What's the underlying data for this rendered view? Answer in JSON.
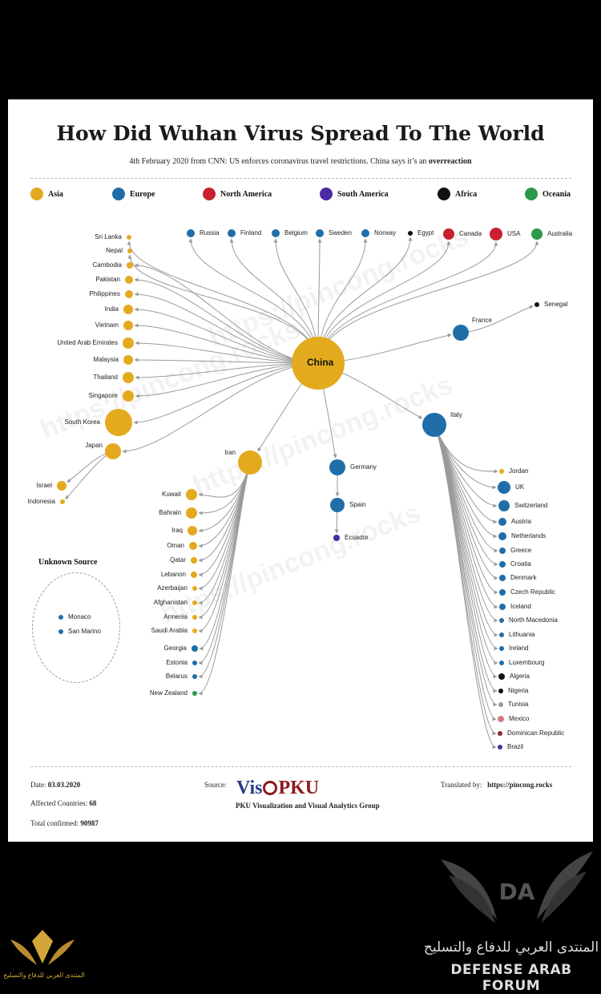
{
  "title": "How Did Wuhan Virus Spread To The World",
  "subtitle_prefix": "4th February 2020 from CNN: US enforces coronavirus travel restrictions. China says it’s an ",
  "subtitle_emphasis": "overreaction",
  "colors": {
    "asia": "#e3aa1e",
    "europe": "#1f6ea8",
    "north_america": "#c8202f",
    "south_america": "#4a2aa5",
    "africa": "#111111",
    "oceania": "#2a9a4a",
    "gray": "#9a9a9a",
    "pink": "#d77a86",
    "maroon": "#8c2a36"
  },
  "legend": [
    {
      "label": "Asia",
      "color": "#e3aa1e"
    },
    {
      "label": "Europe",
      "color": "#1f6ea8"
    },
    {
      "label": "North America",
      "color": "#c8202f"
    },
    {
      "label": "South America",
      "color": "#4a2aa5"
    },
    {
      "label": "Africa",
      "color": "#111111"
    },
    {
      "label": "Oceania",
      "color": "#2a9a4a"
    }
  ],
  "hub": {
    "name": "China"
  },
  "countries": {
    "russia": "Russia",
    "finland": "Finland",
    "belgium": "Belgium",
    "sweden": "Sweden",
    "norway": "Norway",
    "egypt": "Egypt",
    "canada": "Canada",
    "usa": "USA",
    "australia": "Australia",
    "france": "France",
    "senegal": "Senegal",
    "srilanka": "Sri Lanka",
    "nepal": "Nepal",
    "cambodia": "Cambodia",
    "pakistan": "Pakistan",
    "philippines": "Philippines",
    "india": "India",
    "vietnam": "Vietnam",
    "uae": "United Arab Emirates",
    "malaysia": "Malaysia",
    "thailand": "Thailand",
    "singapore": "Singapore",
    "southkorea": "South Korea",
    "japan": "Japan",
    "israel": "Israel",
    "indonesia": "Indonesia",
    "iran": "Iran",
    "kuwait": "Kuwait",
    "bahrain": "Bahrain",
    "iraq": "Iraq",
    "oman": "Oman",
    "qatar": "Qatar",
    "lebanon": "Lebanon",
    "azerbaijan": "Azerbaijan",
    "afghanistan": "Afghanistan",
    "armenia": "Armenia",
    "saudi": "Saudi Arabia",
    "georgia": "Georgia",
    "estonia": "Estonia",
    "belarus": "Belarus",
    "newzealand": "New Zealand",
    "germany": "Germany",
    "spain": "Spain",
    "ecuador": "Ecuador",
    "italy": "Italy",
    "jordan": "Jordan",
    "uk": "UK",
    "switzerland": "Switzerland",
    "austria": "Austria",
    "netherlands": "Netherlands",
    "greece": "Greece",
    "croatia": "Croatia",
    "denmark": "Denmark",
    "czech": "Czech Republic",
    "iceland": "Iceland",
    "northmacedonia": "North Macedonia",
    "lithuania": "Lithuania",
    "ireland": "Ireland",
    "luxembourg": "Luxembourg",
    "algeria": "Algeria",
    "nigeria": "Nigeria",
    "tunisia": "Tunisia",
    "mexico": "Mexico",
    "dominican": "Dominican Republic",
    "brazil": "Brazil",
    "monaco": "Monaco",
    "sanmarino": "San Marino"
  },
  "unknown_source": {
    "title": "Unknown Source"
  },
  "watermark": "https://pincong.rocks",
  "footer": {
    "date_label": "Date:",
    "date_value": "03.03.2020",
    "affected_label": "Affected Countries:",
    "affected_value": "68",
    "confirmed_label": "Total confirmed:",
    "confirmed_value": "90987",
    "source_label": "Source:",
    "logo_left": "Vis",
    "logo_right": "PKU",
    "group_name": "PKU Visualization and Visual Analytics Group",
    "translated_label": "Translated by:",
    "translated_value": "https://pincong.rocks"
  },
  "forum": {
    "logo_text": "DA",
    "arabic_name": "المنتدى العربي للدفاع والتسليح",
    "english_name": "DEFENSE ARAB FORUM",
    "badge_text": "المنتدى العربي للدفاع والتسليح"
  }
}
